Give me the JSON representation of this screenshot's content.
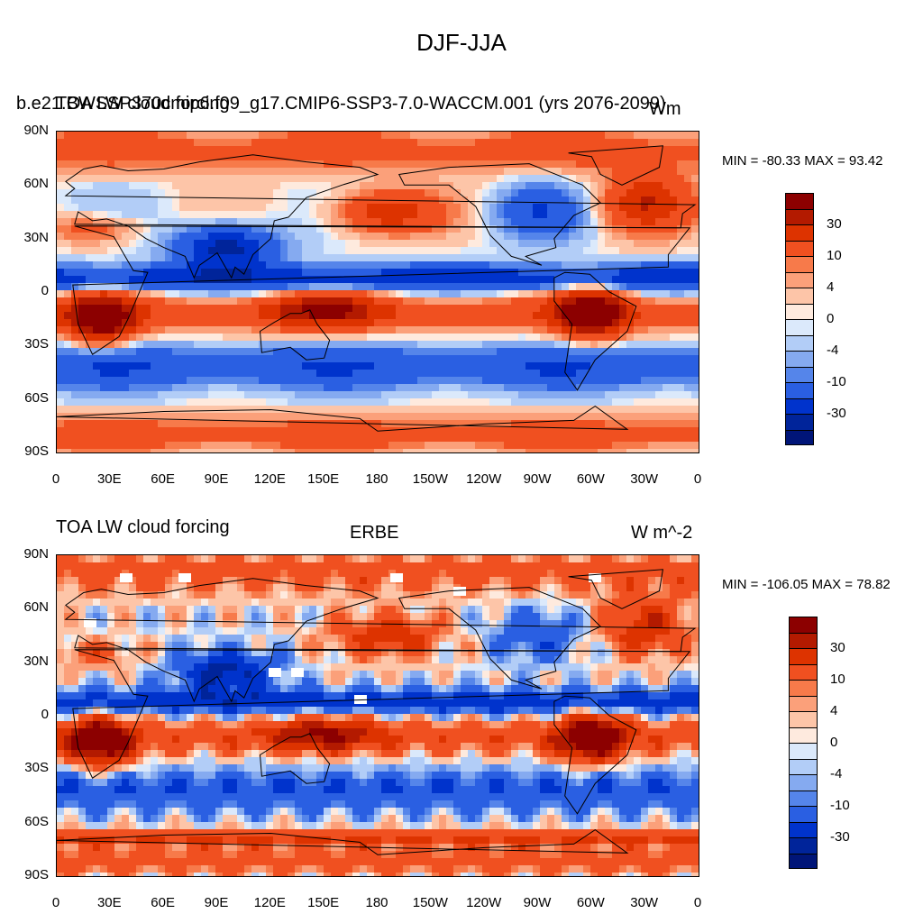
{
  "figure": {
    "title": "DJF-JJA"
  },
  "colorbar_levels": [
    "#8c0000",
    "#b31a00",
    "#dd3300",
    "#f05020",
    "#f77a4a",
    "#fba07a",
    "#fdc5a8",
    "#feeade",
    "#dbe9fb",
    "#b2cdf7",
    "#85aaf0",
    "#5585ea",
    "#2a5fe2",
    "#0033cc",
    "#00249a",
    "#001578"
  ],
  "panels": [
    {
      "left_title": "TOA LW cloud forcing",
      "overlapped_title": "b.e21.BWSSP370cmip6.f09_g17.CMIP6-SSP3-7.0-WACCM.001 (yrs 2076-2099)",
      "right_units": "Wm",
      "stats": "MIN = -80.33 MAX =  93.42",
      "colorbar_labels": [
        "30",
        "10",
        "4",
        "0",
        "-4",
        "-10",
        "-30"
      ]
    },
    {
      "left_title": "TOA LW cloud forcing",
      "center_title": "ERBE",
      "right_units": "W m^-2",
      "stats": "MIN = -106.05 MAX =  78.82",
      "colorbar_labels": [
        "30",
        "10",
        "4",
        "0",
        "-4",
        "-10",
        "-30"
      ]
    }
  ],
  "axes": {
    "lat_labels": [
      "90N",
      "60N",
      "30N",
      "0",
      "30S",
      "60S",
      "90S"
    ],
    "lon_labels": [
      "0",
      "30E",
      "60E",
      "90E",
      "120E",
      "150E",
      "180",
      "150W",
      "120W",
      "90W",
      "60W",
      "30W",
      "0"
    ]
  }
}
